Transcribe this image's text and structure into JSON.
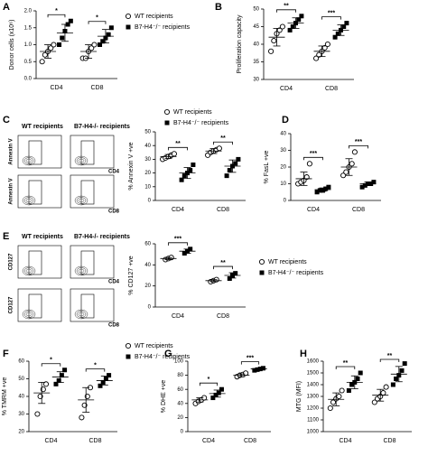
{
  "chart_data": [
    {
      "type": "scatter",
      "panel": "A",
      "ylabel": "Donor cells (x10⁶)",
      "categories": [
        "CD4",
        "CD8"
      ],
      "legend": true,
      "ylim": [
        0,
        2
      ],
      "yticks": [
        {
          "value": 0,
          "label": "0.0"
        },
        {
          "value": 0.5,
          "label": "0.5"
        },
        {
          "value": 1,
          "label": "1.0"
        },
        {
          "value": 1.5,
          "label": "1.5"
        },
        {
          "value": 2,
          "label": "2.0"
        }
      ],
      "significance": [
        "*",
        "*"
      ],
      "series": [
        {
          "name": "WT recipients",
          "marker": "circle-open",
          "values": [
            [
              0.5,
              0.7,
              0.8,
              0.9,
              1.0
            ],
            [
              0.6,
              0.6,
              0.8,
              0.9,
              1.0
            ]
          ],
          "mean": [
            0.8,
            0.8
          ],
          "sd": [
            0.2,
            0.2
          ]
        },
        {
          "name": "B7-H4⁻/⁻ recipients",
          "marker": "square",
          "values": [
            [
              1.0,
              1.2,
              1.4,
              1.6,
              1.7
            ],
            [
              1.0,
              1.1,
              1.2,
              1.3,
              1.5
            ]
          ],
          "mean": [
            1.35,
            1.25
          ],
          "sd": [
            0.25,
            0.2
          ]
        }
      ]
    },
    {
      "type": "scatter",
      "panel": "B",
      "ylabel": "Proliferation capacity",
      "categories": [
        "CD4",
        "CD8"
      ],
      "ylim": [
        30,
        50
      ],
      "yticks": [
        30,
        35,
        40,
        45,
        50
      ],
      "significance": [
        "**",
        "***"
      ],
      "series": [
        {
          "marker": "circle-open",
          "values": [
            [
              38,
              41,
              43,
              44,
              45
            ],
            [
              36,
              37,
              38,
              39,
              40
            ]
          ],
          "mean": [
            42,
            38
          ],
          "sd": [
            2.5,
            1.5
          ]
        },
        {
          "marker": "square",
          "values": [
            [
              44,
              45,
              46,
              47,
              48
            ],
            [
              42,
              43,
              44,
              45,
              46
            ]
          ],
          "mean": [
            46,
            44
          ],
          "sd": [
            1.5,
            1.5
          ]
        }
      ]
    },
    {
      "type": "scatter",
      "panel": "C",
      "ylabel": "% Annexin V +ve",
      "categories": [
        "CD4",
        "CD8"
      ],
      "legend": true,
      "ylim": [
        0,
        50
      ],
      "yticks": [
        0,
        10,
        20,
        30,
        40,
        50
      ],
      "significance": [
        "**",
        "**"
      ],
      "series": [
        {
          "name": "WT recipients",
          "marker": "circle-open",
          "values": [
            [
              30,
              31,
              32,
              33,
              34
            ],
            [
              33,
              35,
              36,
              37,
              38
            ]
          ],
          "mean": [
            32,
            36
          ],
          "sd": [
            1.5,
            1.8
          ]
        },
        {
          "name": "B7-H4⁻/⁻ recipients",
          "marker": "square",
          "values": [
            [
              15,
              18,
              20,
              22,
              26
            ],
            [
              18,
              22,
              25,
              27,
              30
            ]
          ],
          "mean": [
            20,
            25
          ],
          "sd": [
            4,
            4.5
          ]
        }
      ]
    },
    {
      "type": "scatter",
      "panel": "D",
      "ylabel": "% FasL +ve",
      "categories": [
        "CD4",
        "CD8"
      ],
      "ylim": [
        0,
        40
      ],
      "yticks": [
        0,
        10,
        20,
        30,
        40
      ],
      "significance": [
        "***",
        "***"
      ],
      "series": [
        {
          "marker": "circle-open",
          "values": [
            [
              10,
              11,
              12,
              14,
              22
            ],
            [
              15,
              17,
              20,
              22,
              29
            ]
          ],
          "mean": [
            13,
            20
          ],
          "sd": [
            4,
            5
          ]
        },
        {
          "marker": "square",
          "values": [
            [
              5,
              6,
              6,
              7,
              8
            ],
            [
              8,
              9,
              10,
              10,
              11
            ]
          ],
          "mean": [
            6.5,
            10
          ],
          "sd": [
            1,
            1
          ]
        }
      ]
    },
    {
      "type": "scatter",
      "panel": "E",
      "ylabel": "% CD127 +ve",
      "categories": [
        "CD4",
        "CD8"
      ],
      "legend": true,
      "ylim": [
        0,
        60
      ],
      "yticks": [
        0,
        20,
        40,
        60
      ],
      "significance": [
        "***",
        "**"
      ],
      "series": [
        {
          "name": "WT recipients",
          "marker": "circle-open",
          "values": [
            [
              45,
              46,
              47
            ],
            [
              24,
              25,
              26
            ]
          ],
          "mean": [
            46,
            25
          ],
          "sd": [
            1,
            1
          ]
        },
        {
          "name": "B7-H4⁻/⁻ recipients",
          "marker": "square",
          "values": [
            [
              51,
              53,
              55
            ],
            [
              27,
              30,
              32
            ]
          ],
          "mean": [
            53,
            30
          ],
          "sd": [
            2,
            2.5
          ]
        }
      ]
    },
    {
      "type": "scatter",
      "panel": "F",
      "ylabel": "% TMRM +ve",
      "categories": [
        "CD4",
        "CD8"
      ],
      "legend": true,
      "ylim": [
        20,
        60
      ],
      "yticks": [
        20,
        30,
        40,
        50,
        60
      ],
      "significance": [
        "*",
        "*"
      ],
      "series": [
        {
          "name": "WT recipients",
          "marker": "circle-open",
          "values": [
            [
              30,
              40,
              44,
              47
            ],
            [
              28,
              35,
              40,
              45
            ]
          ],
          "mean": [
            42,
            38
          ],
          "sd": [
            6,
            7
          ]
        },
        {
          "name": "B7-H4⁻/⁻ recipients",
          "marker": "square",
          "values": [
            [
              47,
              49,
              52,
              55
            ],
            [
              46,
              48,
              50,
              52
            ]
          ],
          "mean": [
            51,
            49
          ],
          "sd": [
            3,
            2.5
          ]
        }
      ]
    },
    {
      "type": "scatter",
      "panel": "G",
      "ylabel": "% DHE +ve",
      "categories": [
        "CD4",
        "CD8"
      ],
      "ylim": [
        0,
        100
      ],
      "yticks": [
        0,
        20,
        40,
        60,
        80,
        100
      ],
      "significance": [
        "*",
        "***"
      ],
      "series": [
        {
          "marker": "circle-open",
          "values": [
            [
              40,
              43,
              45,
              48
            ],
            [
              78,
              80,
              81,
              83
            ]
          ],
          "mean": [
            45,
            80
          ],
          "sd": [
            3,
            2
          ]
        },
        {
          "marker": "square",
          "values": [
            [
              48,
              52,
              55,
              60
            ],
            [
              87,
              88,
              89,
              90
            ]
          ],
          "mean": [
            54,
            89
          ],
          "sd": [
            5,
            1.2
          ]
        }
      ]
    },
    {
      "type": "scatter",
      "panel": "H",
      "ylabel": "MTG (MFI)",
      "categories": [
        "CD4",
        "CD8"
      ],
      "ylim": [
        1000,
        1600
      ],
      "yticks": [
        1000,
        1100,
        1200,
        1300,
        1400,
        1500,
        1600
      ],
      "significance": [
        "**",
        "**"
      ],
      "series": [
        {
          "marker": "circle-open",
          "values": [
            [
              1200,
              1250,
              1280,
              1300,
              1350
            ],
            [
              1250,
              1280,
              1300,
              1330,
              1380
            ]
          ],
          "mean": [
            1275,
            1310
          ],
          "sd": [
            55,
            50
          ]
        },
        {
          "marker": "square",
          "values": [
            [
              1350,
              1400,
              1420,
              1450,
              1500
            ],
            [
              1400,
              1450,
              1480,
              1520,
              1580
            ]
          ],
          "mean": [
            1420,
            1490
          ],
          "sd": [
            55,
            65
          ]
        }
      ]
    }
  ],
  "flow_plots": [
    {
      "panel": "C",
      "columns": [
        "WT recipients",
        "B7-H4-/- recipients"
      ],
      "rows": [
        {
          "y_label": "Annexin V",
          "x_label": "CD4"
        },
        {
          "y_label": "Annexin V",
          "x_label": "CD8"
        }
      ]
    },
    {
      "panel": "E",
      "columns": [
        "WT recipients",
        "B7-H4-/- recipients"
      ],
      "rows": [
        {
          "y_label": "CD127",
          "x_label": "CD4"
        },
        {
          "y_label": "CD127",
          "x_label": "CD8"
        }
      ]
    }
  ]
}
